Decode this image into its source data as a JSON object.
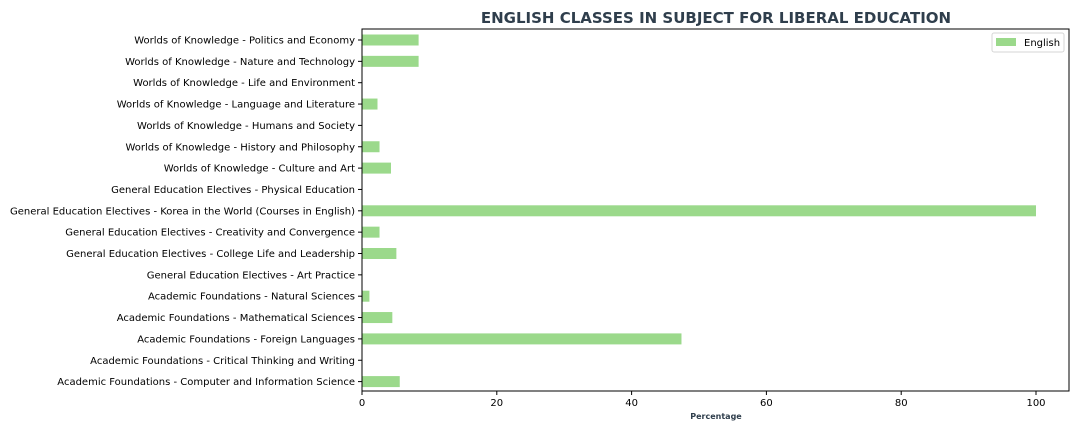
{
  "chart_data": {
    "type": "bar",
    "orientation": "horizontal",
    "title": "ENGLISH CLASSES IN SUBJECT FOR LIBERAL EDUCATION",
    "xlabel": "Percentage",
    "ylabel": "",
    "xlim": [
      0,
      105
    ],
    "xticks": [
      "0",
      "20",
      "40",
      "60",
      "80",
      "100"
    ],
    "grid": false,
    "legend_position": "top-right",
    "categories": [
      "Academic Foundations - Computer and Information Science",
      "Academic Foundations - Critical Thinking and Writing",
      "Academic Foundations - Foreign Languages",
      "Academic Foundations - Mathematical Sciences",
      "Academic Foundations - Natural Sciences",
      "General Education Electives - Art Practice",
      "General Education Electives - College Life and Leadership",
      "General Education Electives - Creativity and Convergence",
      "General Education Electives - Korea in the World (Courses in English)",
      "General Education Electives - Physical Education",
      "Worlds of Knowledge - Culture and Art",
      "Worlds of Knowledge - History and Philosophy",
      "Worlds of Knowledge - Humans and Society",
      "Worlds of Knowledge - Language and Literature",
      "Worlds of Knowledge - Life and Environment",
      "Worlds of Knowledge - Nature and Technology",
      "Worlds of Knowledge - Politics and Economy"
    ],
    "series": [
      {
        "name": "English",
        "color": "#9bd98b",
        "values": [
          5.6,
          0,
          47.4,
          4.5,
          1.1,
          0,
          5.1,
          2.6,
          100,
          0,
          4.3,
          2.6,
          0,
          2.3,
          0,
          8.4,
          8.4
        ]
      }
    ]
  }
}
